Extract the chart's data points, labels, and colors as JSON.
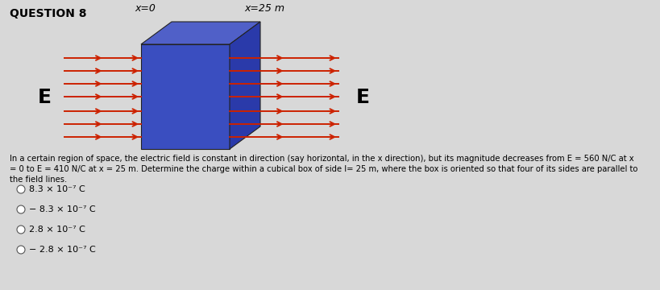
{
  "title": "QUESTION 8",
  "background_color": "#d8d8d8",
  "plot_bg": "#e0e0e0",
  "body_text_line1": "In a certain region of space, the electric field is constant in direction (say horizontal, in the x direction), but its magnitude decreases from E = 560 N/C at x",
  "body_text_line2": "= 0 to E = 410 N/C at x = 25 m. Determine the charge within a cubical box of side l= 25 m, where the box is oriented so that four of its sides are parallel to",
  "body_text_line3": "the field lines.",
  "options": [
    "8.3 × 10⁻⁷ C",
    "− 8.3 × 10⁻⁷ C",
    "2.8 × 10⁻⁷ C",
    "− 2.8 × 10⁻⁷ C"
  ],
  "label_x0": "x=0",
  "label_x25": "x=25 m",
  "label_E_left": "E",
  "label_E_right": "E",
  "cube_face_color": "#3a4ec0",
  "cube_top_color": "#5060c8",
  "cube_side_color": "#2a3aaa",
  "arrow_color": "#cc2200",
  "font_size_title": 10,
  "font_size_body": 7.2,
  "font_size_options": 8,
  "font_size_E": 18,
  "font_size_x_labels": 9
}
